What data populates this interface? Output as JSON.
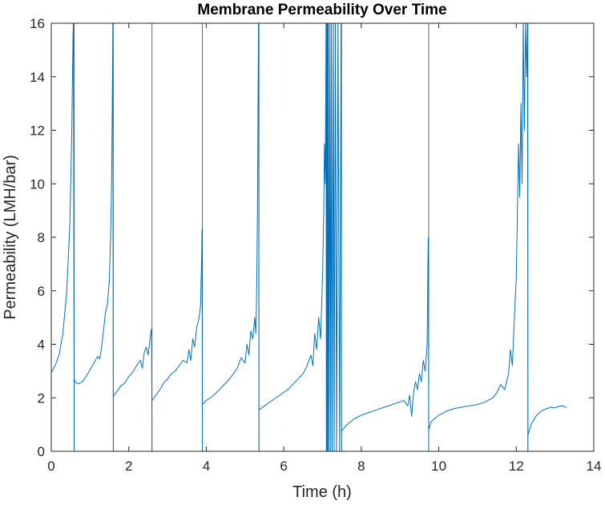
{
  "chart_data": {
    "type": "line",
    "title": "Membrane Permeability Over Time",
    "xlabel": "Time (h)",
    "ylabel": "Permeability (LMH/bar)",
    "xlim": [
      0,
      14
    ],
    "ylim": [
      0,
      16
    ],
    "xticks": [
      0,
      2,
      4,
      6,
      8,
      10,
      12,
      14
    ],
    "yticks": [
      0,
      2,
      4,
      6,
      8,
      10,
      12,
      14,
      16
    ],
    "grid": false,
    "legend": "none",
    "series": [
      {
        "color": "#0072BD",
        "segments": [
          {
            "x": [
              0.0,
              0.1,
              0.2,
              0.3,
              0.4,
              0.48,
              0.53,
              0.56,
              0.57
            ],
            "y": [
              2.95,
              3.2,
              3.6,
              4.4,
              6.0,
              8.5,
              12.0,
              15.5,
              16.0
            ]
          },
          {
            "x": [
              0.57,
              0.585,
              0.59
            ],
            "y": [
              16.0,
              5.0,
              0.0
            ]
          },
          {
            "x": [
              0.59,
              0.6,
              0.65,
              0.7,
              0.8,
              0.9,
              1.0,
              1.1,
              1.2,
              1.25,
              1.3,
              1.33,
              1.37,
              1.4,
              1.45,
              1.5,
              1.53,
              1.56,
              1.58,
              1.59
            ],
            "y": [
              2.75,
              2.65,
              2.55,
              2.52,
              2.6,
              2.8,
              3.05,
              3.3,
              3.55,
              3.45,
              3.9,
              4.3,
              4.8,
              5.2,
              5.5,
              6.4,
              8.0,
              10.3,
              14.0,
              16.0
            ]
          },
          {
            "x": [
              1.59,
              1.595,
              1.6
            ],
            "y": [
              16.0,
              8.0,
              0.0
            ]
          },
          {
            "x": [
              1.6,
              1.7,
              1.8,
              1.9,
              2.0,
              2.1,
              2.2,
              2.3,
              2.35,
              2.4,
              2.45,
              2.5,
              2.55,
              2.58,
              2.59
            ],
            "y": [
              2.05,
              2.25,
              2.45,
              2.55,
              2.8,
              2.95,
              3.2,
              3.4,
              3.1,
              3.7,
              3.9,
              3.6,
              4.2,
              4.55,
              4.5
            ]
          },
          {
            "x": [
              2.59,
              2.595,
              2.6
            ],
            "y": [
              4.5,
              2.0,
              0.0
            ]
          },
          {
            "x": [
              2.6,
              2.7,
              2.8,
              2.9,
              3.0,
              3.1,
              3.2,
              3.3,
              3.4,
              3.5,
              3.55,
              3.6,
              3.65,
              3.7,
              3.75,
              3.8,
              3.85,
              3.88,
              3.89
            ],
            "y": [
              1.9,
              2.1,
              2.3,
              2.55,
              2.7,
              2.9,
              3.0,
              3.2,
              3.4,
              3.3,
              3.8,
              3.4,
              4.2,
              3.9,
              4.6,
              4.9,
              5.4,
              7.2,
              8.3
            ]
          },
          {
            "x": [
              3.89,
              3.895,
              3.9
            ],
            "y": [
              8.3,
              4.0,
              0.0
            ]
          },
          {
            "x": [
              3.9,
              4.0,
              4.2,
              4.4,
              4.6,
              4.8,
              4.9,
              5.0,
              5.05,
              5.1,
              5.15,
              5.2,
              5.25,
              5.28,
              5.3,
              5.32,
              5.34,
              5.35
            ],
            "y": [
              1.75,
              1.9,
              2.1,
              2.4,
              2.7,
              3.1,
              3.5,
              3.3,
              4.0,
              3.6,
              4.5,
              4.2,
              5.0,
              4.4,
              6.0,
              9.0,
              14.0,
              16.0
            ]
          },
          {
            "x": [
              5.35,
              5.355,
              5.36
            ],
            "y": [
              16.0,
              8.0,
              0.0
            ]
          },
          {
            "x": [
              5.36,
              5.5,
              5.7,
              5.9,
              6.1,
              6.3,
              6.5,
              6.6,
              6.7,
              6.75,
              6.8,
              6.85,
              6.9,
              6.95,
              7.0,
              7.03,
              7.05,
              7.07,
              7.08,
              7.09,
              7.1,
              7.11,
              7.12,
              7.13,
              7.14,
              7.15,
              7.17,
              7.19,
              7.21,
              7.23,
              7.25,
              7.28,
              7.3,
              7.33,
              7.36,
              7.4,
              7.44,
              7.48
            ],
            "y": [
              1.55,
              1.7,
              1.9,
              2.1,
              2.3,
              2.6,
              2.9,
              3.2,
              3.6,
              3.2,
              4.4,
              3.8,
              5.0,
              4.2,
              6.5,
              9.0,
              11.5,
              10.0,
              13.0,
              16.0,
              0.0,
              16.0,
              0.0,
              16.0,
              0.0,
              16.0,
              0.0,
              16.0,
              0.0,
              16.0,
              0.0,
              16.0,
              0.0,
              16.0,
              0.0,
              16.0,
              0.0,
              16.0
            ]
          },
          {
            "x": [
              7.48,
              7.485,
              7.49
            ],
            "y": [
              16.0,
              8.0,
              0.0
            ]
          },
          {
            "x": [
              7.49,
              7.6,
              7.8,
              8.0,
              8.2,
              8.4,
              8.6,
              8.8,
              9.0,
              9.1,
              9.2,
              9.25,
              9.3,
              9.35,
              9.4,
              9.45,
              9.5,
              9.55,
              9.6,
              9.65,
              9.7,
              9.72,
              9.73
            ],
            "y": [
              0.75,
              0.95,
              1.2,
              1.35,
              1.45,
              1.55,
              1.65,
              1.75,
              1.85,
              1.9,
              1.7,
              2.1,
              1.3,
              2.2,
              2.6,
              2.3,
              2.9,
              2.6,
              3.4,
              3.0,
              4.0,
              7.0,
              8.0
            ]
          },
          {
            "x": [
              9.73,
              9.735,
              9.74
            ],
            "y": [
              8.0,
              4.0,
              0.0
            ]
          },
          {
            "x": [
              9.74,
              9.8,
              10.0,
              10.2,
              10.4,
              10.6,
              10.8,
              11.0,
              11.2,
              11.4,
              11.5,
              11.6,
              11.7,
              11.8,
              11.85,
              11.9,
              11.95,
              12.0,
              12.03,
              12.06,
              12.09,
              12.12,
              12.15,
              12.18,
              12.21,
              12.24,
              12.27,
              12.29
            ],
            "y": [
              0.8,
              1.1,
              1.35,
              1.5,
              1.6,
              1.65,
              1.7,
              1.75,
              1.85,
              2.0,
              2.2,
              2.5,
              2.3,
              2.9,
              3.8,
              3.2,
              5.0,
              6.5,
              9.0,
              11.5,
              9.5,
              13.0,
              10.0,
              16.0,
              12.0,
              16.0,
              14.0,
              16.0
            ]
          },
          {
            "x": [
              12.29,
              12.295,
              12.3
            ],
            "y": [
              16.0,
              8.0,
              0.0
            ]
          },
          {
            "x": [
              12.3,
              12.35,
              12.4,
              12.5,
              12.6,
              12.7,
              12.8,
              12.9,
              13.0,
              13.1,
              13.2,
              13.3
            ],
            "y": [
              0.6,
              0.85,
              1.05,
              1.3,
              1.45,
              1.55,
              1.6,
              1.65,
              1.62,
              1.68,
              1.7,
              1.63
            ]
          }
        ]
      }
    ],
    "vertical_lines": [
      0.59,
      1.6,
      2.6,
      3.9,
      5.36,
      7.49,
      9.74,
      12.3
    ],
    "vertical_line_color": "#404040"
  }
}
